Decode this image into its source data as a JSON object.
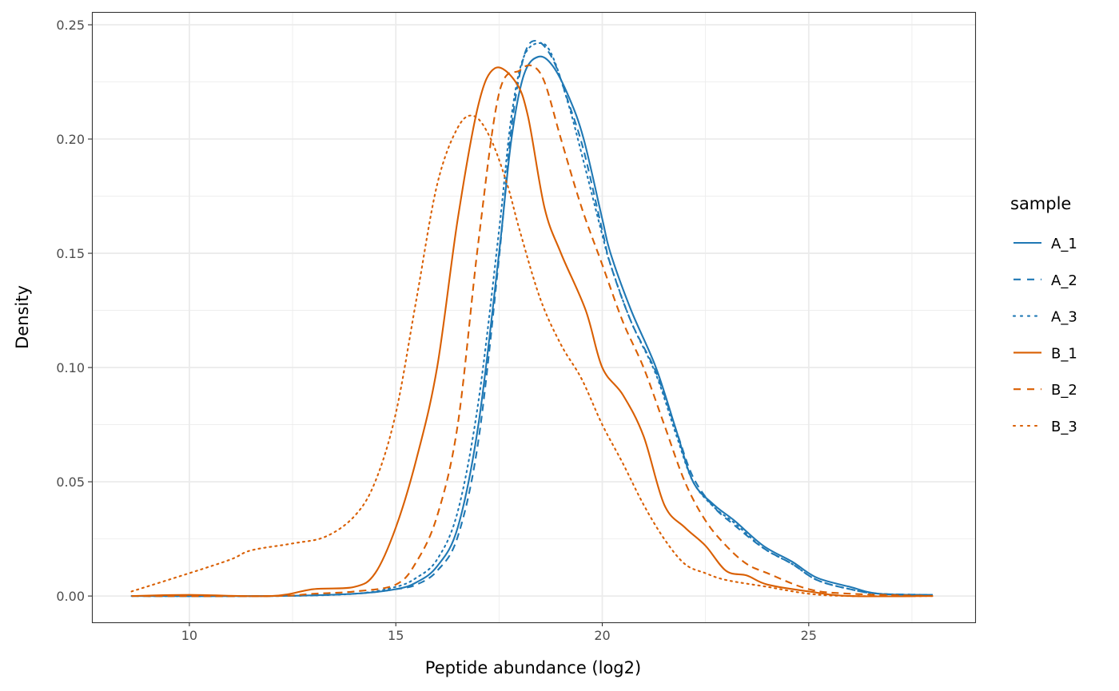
{
  "chart_data": {
    "type": "line",
    "title": "",
    "xlabel": "Peptide abundance (log2)",
    "ylabel": "Density",
    "xlim": [
      7.64,
      29.03
    ],
    "ylim": [
      -0.0115,
      0.2556
    ],
    "xticks": [
      10,
      15,
      20,
      25
    ],
    "xtick_labels": [
      "10",
      "15",
      "20",
      "25"
    ],
    "yticks": [
      0,
      0.05,
      0.1,
      0.15,
      0.2,
      0.25
    ],
    "ytick_labels": [
      "0.00",
      "0.05",
      "0.10",
      "0.15",
      "0.20",
      "0.25"
    ],
    "grid": true,
    "legend": {
      "title": "sample",
      "position": "right"
    },
    "series": [
      {
        "name": "A_1",
        "color": "#1f78b4",
        "linetype": "solid",
        "x": [
          8.6,
          12,
          14,
          15,
          15.5,
          16,
          16.5,
          17,
          17.5,
          17.8,
          18.1,
          18.45,
          18.8,
          19.2,
          19.55,
          20,
          20.2,
          20.7,
          21.3,
          21.8,
          22.2,
          22.7,
          23.2,
          23.9,
          24.6,
          25.2,
          26,
          26.7,
          28
        ],
        "y": [
          0,
          0,
          0.001,
          0.003,
          0.006,
          0.013,
          0.03,
          0.075,
          0.15,
          0.2,
          0.228,
          0.236,
          0.232,
          0.218,
          0.2,
          0.165,
          0.15,
          0.125,
          0.1,
          0.072,
          0.05,
          0.04,
          0.033,
          0.022,
          0.015,
          0.008,
          0.004,
          0.001,
          0.0005
        ]
      },
      {
        "name": "A_2",
        "color": "#1f78b4",
        "linetype": "dashed",
        "x": [
          8.6,
          12,
          14,
          15,
          15.5,
          16,
          16.5,
          17,
          17.5,
          17.8,
          18.1,
          18.4,
          18.8,
          19.2,
          19.55,
          20,
          20.2,
          20.7,
          21.3,
          21.8,
          22.2,
          22.7,
          23.2,
          23.9,
          24.6,
          25.2,
          26,
          26.7,
          28
        ],
        "y": [
          0,
          0,
          0.001,
          0.003,
          0.005,
          0.011,
          0.026,
          0.068,
          0.148,
          0.205,
          0.236,
          0.243,
          0.235,
          0.215,
          0.195,
          0.16,
          0.145,
          0.12,
          0.098,
          0.072,
          0.052,
          0.039,
          0.031,
          0.021,
          0.014,
          0.007,
          0.003,
          0.001,
          0.0005
        ]
      },
      {
        "name": "A_3",
        "color": "#1f78b4",
        "linetype": "dotted",
        "x": [
          8.6,
          12,
          14,
          15,
          15.5,
          16,
          16.5,
          17,
          17.5,
          17.8,
          18.1,
          18.5,
          18.8,
          19.2,
          19.55,
          20,
          20.2,
          20.7,
          21.3,
          21.8,
          22.2,
          22.7,
          23.2,
          23.9,
          24.6,
          25.2,
          26,
          26.7,
          28
        ],
        "y": [
          0,
          0,
          0.001,
          0.004,
          0.008,
          0.016,
          0.037,
          0.085,
          0.16,
          0.21,
          0.236,
          0.242,
          0.236,
          0.214,
          0.19,
          0.158,
          0.145,
          0.12,
          0.097,
          0.07,
          0.05,
          0.039,
          0.032,
          0.021,
          0.014,
          0.007,
          0.003,
          0.001,
          0.0005
        ]
      },
      {
        "name": "B_1",
        "color": "#d95f02",
        "linetype": "solid",
        "x": [
          8.6,
          10,
          12,
          13,
          14,
          14.5,
          15,
          15.5,
          16,
          16.5,
          17,
          17.4,
          17.9,
          18.2,
          18.6,
          19,
          19.6,
          20,
          20.5,
          21,
          21.5,
          22,
          22.5,
          23,
          23.5,
          24,
          25,
          26,
          28
        ],
        "y": [
          0,
          0.0005,
          0,
          0.003,
          0.004,
          0.01,
          0.03,
          0.06,
          0.1,
          0.165,
          0.215,
          0.231,
          0.225,
          0.21,
          0.17,
          0.15,
          0.125,
          0.1,
          0.088,
          0.07,
          0.04,
          0.03,
          0.022,
          0.011,
          0.009,
          0.005,
          0.002,
          0,
          0
        ]
      },
      {
        "name": "B_2",
        "color": "#d95f02",
        "linetype": "dashed",
        "x": [
          8.6,
          12,
          13,
          14,
          15,
          15.5,
          16,
          16.5,
          17,
          17.5,
          18,
          18.3,
          18.6,
          19,
          19.5,
          20,
          20.5,
          21,
          21.5,
          22,
          22.5,
          23,
          23.5,
          24,
          25,
          26,
          28
        ],
        "y": [
          0,
          0,
          0.001,
          0.002,
          0.005,
          0.015,
          0.035,
          0.075,
          0.155,
          0.22,
          0.23,
          0.232,
          0.225,
          0.2,
          0.17,
          0.145,
          0.12,
          0.1,
          0.075,
          0.05,
          0.033,
          0.022,
          0.014,
          0.01,
          0.003,
          0.001,
          0
        ]
      },
      {
        "name": "B_3",
        "color": "#d95f02",
        "linetype": "dotted",
        "x": [
          8.6,
          10,
          11,
          11.5,
          12.5,
          13.3,
          14,
          14.5,
          15,
          15.5,
          16,
          16.5,
          16.9,
          17.3,
          17.7,
          18,
          18.5,
          19,
          19.5,
          20,
          20.5,
          21,
          21.5,
          22,
          22.5,
          23,
          24,
          25,
          26,
          28
        ],
        "y": [
          0.002,
          0.01,
          0.016,
          0.02,
          0.023,
          0.026,
          0.035,
          0.05,
          0.08,
          0.13,
          0.18,
          0.205,
          0.21,
          0.2,
          0.18,
          0.16,
          0.13,
          0.11,
          0.095,
          0.075,
          0.058,
          0.04,
          0.025,
          0.014,
          0.01,
          0.007,
          0.004,
          0.001,
          0,
          0
        ]
      }
    ]
  }
}
